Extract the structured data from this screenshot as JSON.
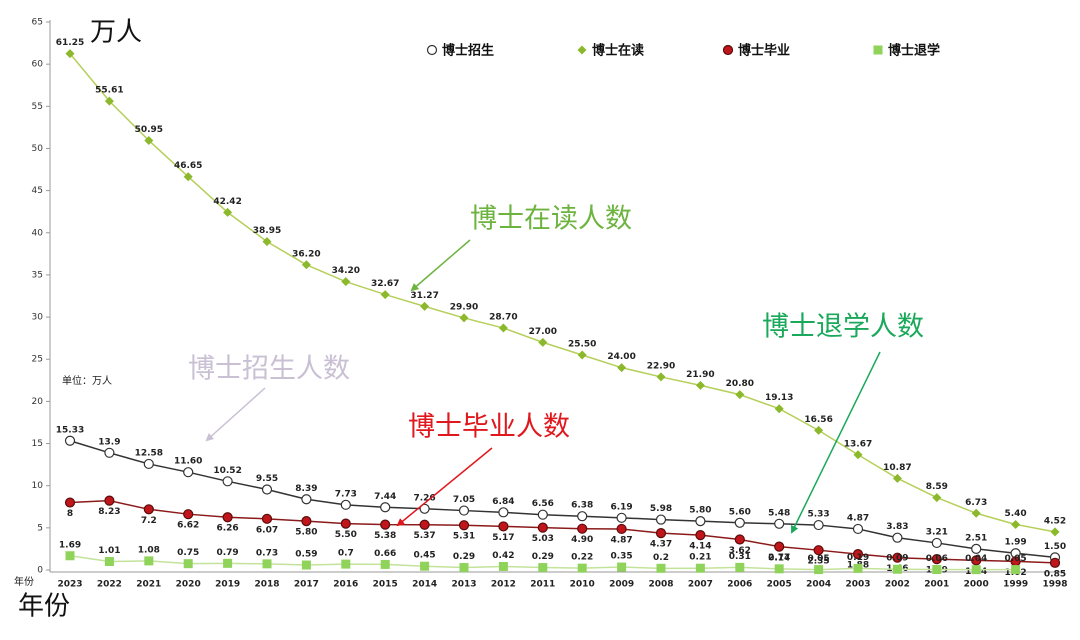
{
  "chart_data": {
    "type": "line",
    "y_unit_label": "万人",
    "x_axis_label": "年份",
    "x_axis_small_label": "年份",
    "unit_note": "单位：万人",
    "categories": [
      "2023",
      "2022",
      "2021",
      "2020",
      "2019",
      "2018",
      "2017",
      "2016",
      "2015",
      "2014",
      "2013",
      "2012",
      "2011",
      "2010",
      "2009",
      "2008",
      "2007",
      "2006",
      "2005",
      "2004",
      "2003",
      "2002",
      "2001",
      "2000",
      "1999",
      "1998"
    ],
    "ylim": [
      0,
      65
    ],
    "yticks": [
      0,
      5,
      10,
      15,
      20,
      25,
      30,
      35,
      40,
      45,
      50,
      55,
      60,
      65
    ],
    "grid": false,
    "legend": "top",
    "series": [
      {
        "name": "博士招生",
        "color": "#333333",
        "marker": "circle",
        "values": [
          15.33,
          13.9,
          12.58,
          11.6,
          10.52,
          9.55,
          8.39,
          7.73,
          7.44,
          7.26,
          7.05,
          6.84,
          6.56,
          6.38,
          6.19,
          5.98,
          5.8,
          5.6,
          5.48,
          5.33,
          4.87,
          3.83,
          3.21,
          2.51,
          1.99,
          1.5
        ],
        "value_labels": [
          "15.33",
          "13.9",
          "12.58",
          "11.60",
          "10.52",
          "9.55",
          "8.39",
          "7.73",
          "7.44",
          "7.26",
          "7.05",
          "6.84",
          "6.56",
          "6.38",
          "6.19",
          "5.98",
          "5.80",
          "5.60",
          "5.48",
          "5.33",
          "4.87",
          "3.83",
          "3.21",
          "2.51",
          "1.99",
          "1.50"
        ]
      },
      {
        "name": "博士在读",
        "color": "#8cb82b",
        "marker": "diamond",
        "values": [
          61.25,
          55.61,
          50.95,
          46.65,
          42.42,
          38.95,
          36.2,
          34.2,
          32.67,
          31.27,
          29.9,
          28.7,
          27.0,
          25.5,
          24.0,
          22.9,
          21.9,
          20.8,
          19.13,
          16.56,
          13.67,
          10.87,
          8.59,
          6.73,
          5.4,
          4.52
        ],
        "value_labels": [
          "61.25",
          "55.61",
          "50.95",
          "46.65",
          "42.42",
          "38.95",
          "36.20",
          "34.20",
          "32.67",
          "31.27",
          "29.90",
          "28.70",
          "27.00",
          "25.50",
          "24.00",
          "22.90",
          "21.90",
          "20.80",
          "19.13",
          "16.56",
          "13.67",
          "10.87",
          "8.59",
          "6.73",
          "5.40",
          "4.52"
        ]
      },
      {
        "name": "博士毕业",
        "color": "#c0161b",
        "marker": "circle",
        "values": [
          8,
          8.23,
          7.2,
          6.62,
          6.26,
          6.07,
          5.8,
          5.5,
          5.38,
          5.37,
          5.31,
          5.17,
          5.03,
          4.9,
          4.87,
          4.37,
          4.14,
          3.62,
          2.77,
          2.35,
          1.88,
          1.46,
          1.29,
          1.14,
          1.02,
          0.85
        ],
        "value_labels": [
          "8",
          "8.23",
          "7.2",
          "6.62",
          "6.26",
          "6.07",
          "5.80",
          "5.50",
          "5.38",
          "5.37",
          "5.31",
          "5.17",
          "5.03",
          "4.90",
          "4.87",
          "4.37",
          "4.14",
          "3.62",
          "2.77",
          "2.35",
          "1.88",
          "1.46",
          "1.29",
          "1.14",
          "1.02",
          "0.85"
        ]
      },
      {
        "name": "博士退学",
        "color": "#8fd35a",
        "marker": "square",
        "values": [
          1.69,
          1.01,
          1.08,
          0.75,
          0.79,
          0.73,
          0.59,
          0.7,
          0.66,
          0.45,
          0.29,
          0.42,
          0.29,
          0.22,
          0.35,
          0.2,
          0.21,
          0.31,
          0.14,
          0.05,
          0.19,
          0.09,
          0.06,
          0.04,
          0.05,
          null
        ],
        "value_labels": [
          "1.69",
          "1.01",
          "1.08",
          "0.75",
          "0.79",
          "0.73",
          "0.59",
          "0.7",
          "0.66",
          "0.45",
          "0.29",
          "0.42",
          "0.29",
          "0.22",
          "0.35",
          "0.2",
          "0.21",
          "0.31",
          "0.14",
          "0.05",
          "0.19",
          "0.09",
          "0.06",
          "0.04",
          "0.05",
          null
        ]
      }
    ],
    "annotations": [
      {
        "text": "博士在读人数",
        "color": "#6db33f"
      },
      {
        "text": "博士招生人数",
        "color": "#c9c0d3"
      },
      {
        "text": "博士毕业人数",
        "color": "#e0181e"
      },
      {
        "text": "博士退学人数",
        "color": "#1aa85a"
      }
    ]
  }
}
